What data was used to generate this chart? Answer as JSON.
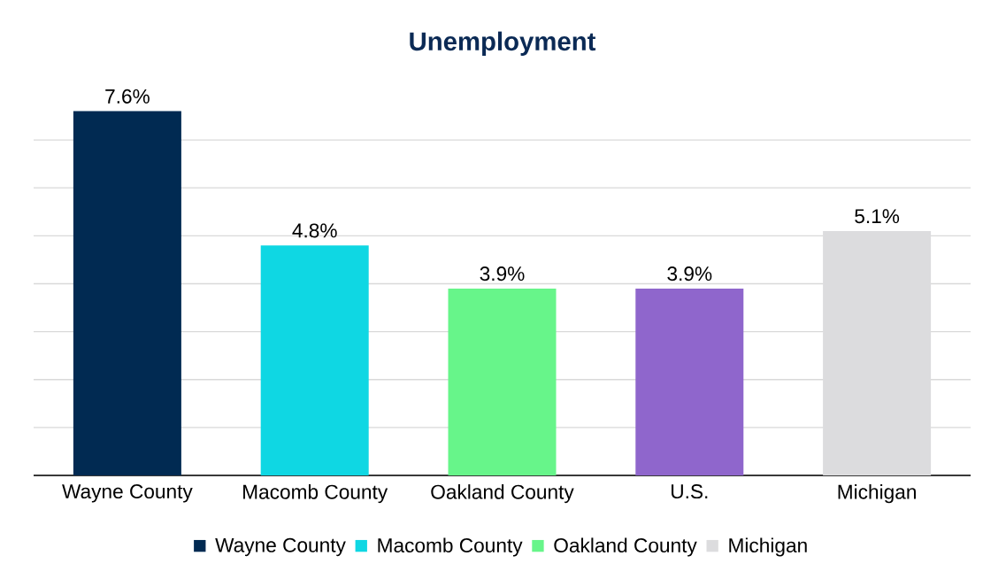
{
  "chart_data": {
    "type": "bar",
    "title": "Unemployment",
    "categories": [
      "Wayne County",
      "Macomb County",
      "Oakland County",
      "U.S.",
      "Michigan"
    ],
    "series": [
      {
        "name": "Wayne County",
        "color": "#012a52",
        "values": [
          7.6,
          null,
          null,
          null,
          null
        ],
        "value_labels": [
          "7.6%",
          null,
          null,
          null,
          null
        ]
      },
      {
        "name": "Macomb County",
        "color": "#0fd7e3",
        "values": [
          null,
          4.8,
          null,
          null,
          null
        ],
        "value_labels": [
          null,
          "4.8%",
          null,
          null,
          null
        ]
      },
      {
        "name": "Oakland County",
        "color": "#67f58a",
        "values": [
          null,
          null,
          3.9,
          null,
          null
        ],
        "value_labels": [
          null,
          null,
          "3.9%",
          null,
          null
        ]
      },
      {
        "color": "#8f66cc",
        "values": [
          null,
          null,
          null,
          3.9,
          null
        ],
        "value_labels": [
          null,
          null,
          null,
          "3.9%",
          null
        ]
      },
      {
        "name": "Michigan",
        "color": "#dcdcde",
        "values": [
          null,
          null,
          null,
          null,
          5.1
        ],
        "value_labels": [
          null,
          null,
          null,
          null,
          "5.1%"
        ]
      }
    ],
    "tick_labels": "x",
    "grid": "y",
    "legend": "bottom"
  }
}
